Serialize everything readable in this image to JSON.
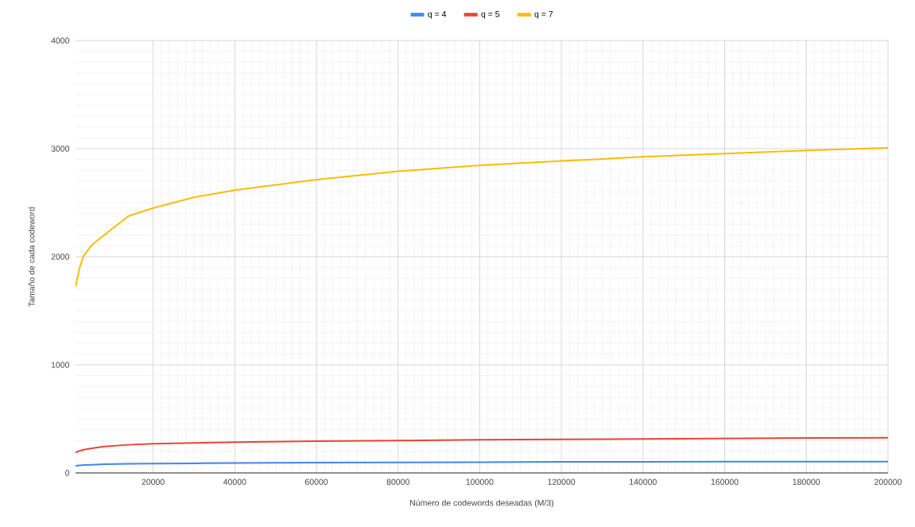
{
  "chart_data": {
    "type": "line",
    "xlabel": "Número de codewords deseadas (M/3)",
    "ylabel": "Tamaño de cada codeword",
    "x": [
      1000,
      2000,
      3000,
      5000,
      8000,
      14000,
      20000,
      30000,
      40000,
      60000,
      80000,
      100000,
      120000,
      140000,
      160000,
      180000,
      200000
    ],
    "series": [
      {
        "name": "q = 4",
        "color": "#4285f4",
        "values": [
          66,
          70,
          73,
          76,
          80,
          84,
          86,
          89,
          91,
          96,
          98,
          100,
          103,
          103,
          104,
          104,
          105
        ]
      },
      {
        "name": "q = 5",
        "color": "#ea4335",
        "values": [
          189,
          205,
          215,
          228,
          245,
          260,
          270,
          278,
          284,
          294,
          300,
          306,
          311,
          315,
          319,
          323,
          326
        ]
      },
      {
        "name": "q = 7",
        "color": "#fbbc04",
        "values": [
          1720,
          1900,
          2010,
          2110,
          2200,
          2377,
          2450,
          2550,
          2615,
          2713,
          2790,
          2846,
          2885,
          2924,
          2954,
          2983,
          3007
        ]
      }
    ],
    "xlim": [
      1000,
      200000
    ],
    "ylim": [
      0,
      4000
    ],
    "xticks": [
      20000,
      40000,
      60000,
      80000,
      100000,
      120000,
      140000,
      160000,
      180000,
      200000
    ],
    "yticks": [
      0,
      1000,
      2000,
      3000,
      4000
    ],
    "grid": true,
    "legend": "top",
    "marker": "none",
    "line_style": "solid"
  }
}
